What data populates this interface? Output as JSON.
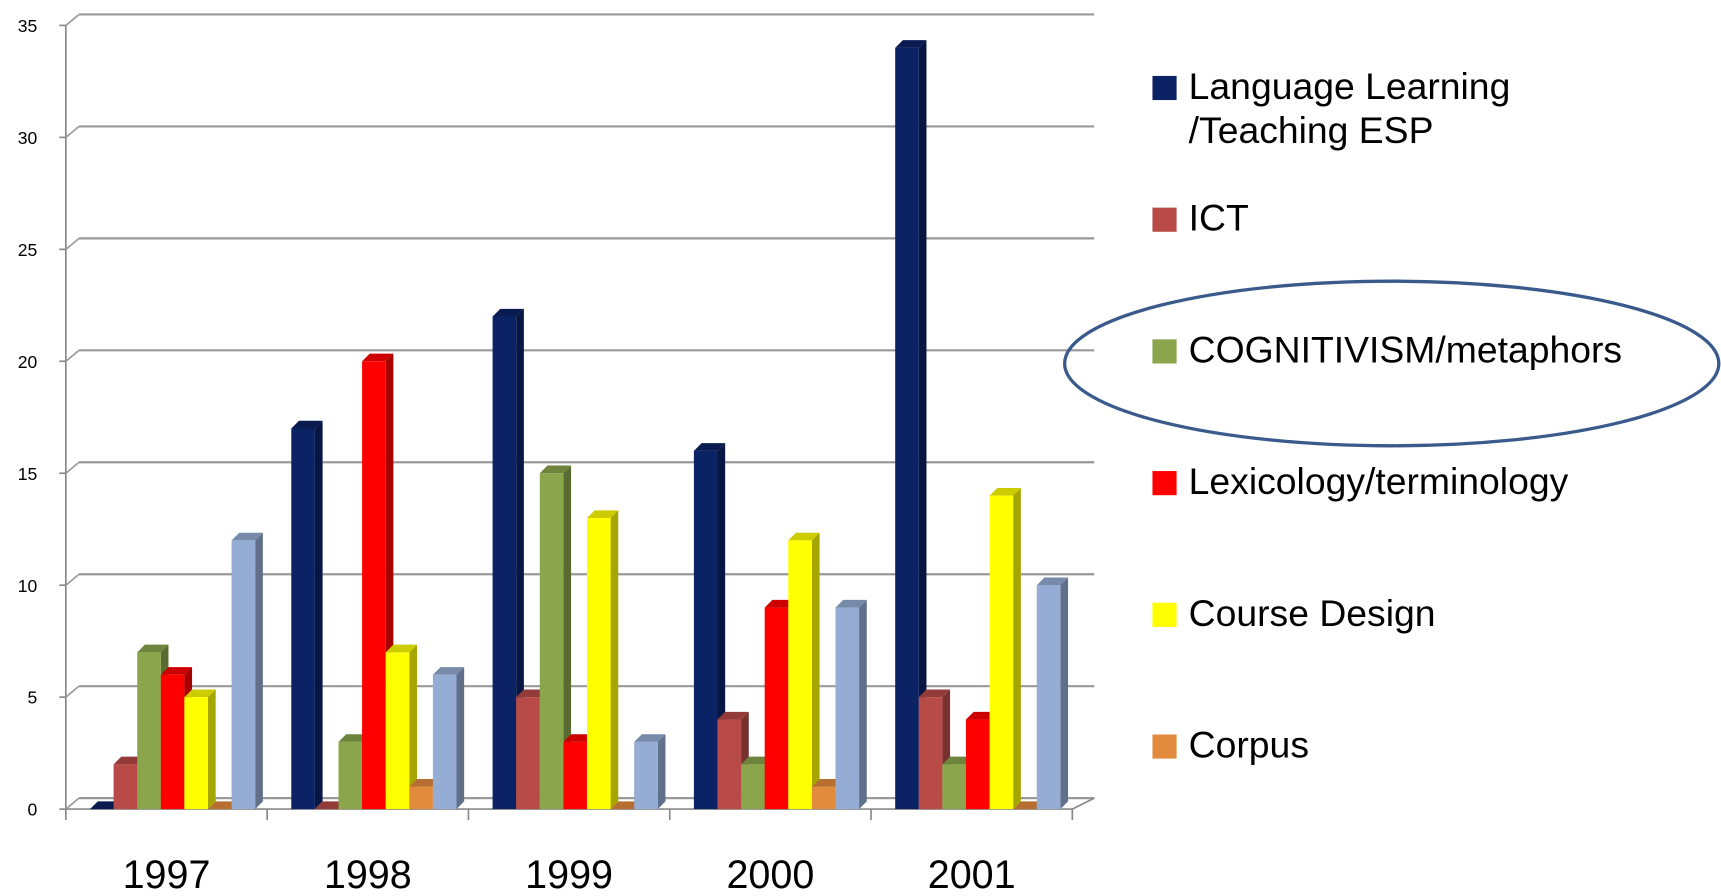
{
  "chart_data": {
    "type": "bar",
    "categories": [
      "1997",
      "1998",
      "1999",
      "2000",
      "2001"
    ],
    "series": [
      {
        "name": "Language Learning /Teaching ESP",
        "color": "#0b2265",
        "values": [
          0,
          17,
          22,
          16,
          34
        ]
      },
      {
        "name": "ICT",
        "color": "#b84a47",
        "values": [
          2,
          0,
          5,
          4,
          5
        ]
      },
      {
        "name": "COGNITIVISM/metaphors",
        "color": "#8aa54b",
        "values": [
          7,
          3,
          15,
          2,
          2
        ]
      },
      {
        "name": "Lexicology/terminology",
        "color": "#ff0000",
        "values": [
          6,
          20,
          3,
          9,
          4
        ]
      },
      {
        "name": "Course Design",
        "color": "#ffff00",
        "values": [
          5,
          7,
          13,
          12,
          14
        ]
      },
      {
        "name": "Corpus",
        "color": "#e38b3c",
        "values": [
          0,
          1,
          0,
          1,
          0
        ]
      },
      {
        "color": "#95acd4",
        "values": [
          12,
          6,
          3,
          9,
          10
        ]
      }
    ],
    "ylim": [
      0,
      35
    ],
    "yticks": [
      0,
      5,
      10,
      15,
      20,
      25,
      30,
      35
    ],
    "grid": true,
    "legend": "right"
  }
}
